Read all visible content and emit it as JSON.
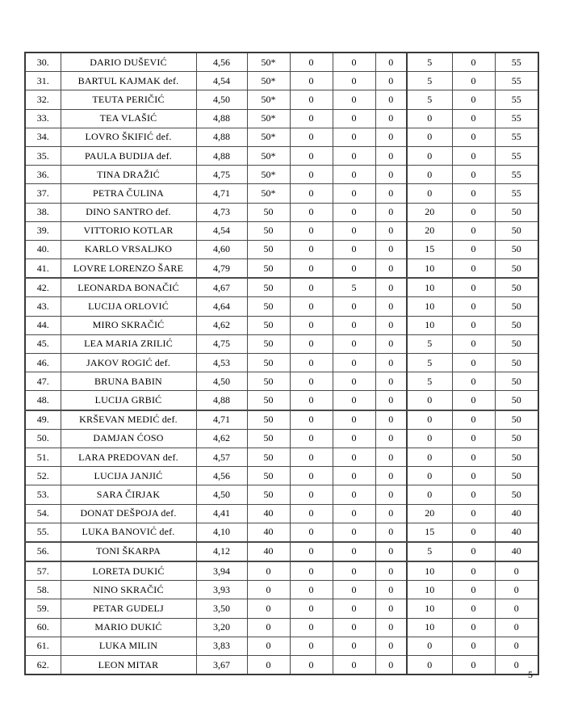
{
  "page": {
    "number": "5"
  },
  "table": {
    "thick_dividers_after_rows": [
      "41.",
      "48.",
      "55.",
      "56."
    ],
    "rows": [
      {
        "no": "30.",
        "name": "DARIO DUŠEVIĆ",
        "avg": "4,56",
        "vals": [
          "50*",
          "0",
          "0",
          "0",
          "5",
          "0",
          "55"
        ],
        "thick_after": false
      },
      {
        "no": "31.",
        "name": "BARTUL KAJMAK def.",
        "avg": "4,54",
        "vals": [
          "50*",
          "0",
          "0",
          "0",
          "5",
          "0",
          "55"
        ],
        "thick_after": false
      },
      {
        "no": "32.",
        "name": "TEUTA PERIČIĆ",
        "avg": "4,50",
        "vals": [
          "50*",
          "0",
          "0",
          "0",
          "5",
          "0",
          "55"
        ],
        "thick_after": false
      },
      {
        "no": "33.",
        "name": "TEA VLAŠIĆ",
        "avg": "4,88",
        "vals": [
          "50*",
          "0",
          "0",
          "0",
          "0",
          "0",
          "55"
        ],
        "thick_after": false
      },
      {
        "no": "34.",
        "name": "LOVRO ŠKIFIĆ def.",
        "avg": "4,88",
        "vals": [
          "50*",
          "0",
          "0",
          "0",
          "0",
          "0",
          "55"
        ],
        "thick_after": false
      },
      {
        "no": "35.",
        "name": "PAULA BUDIJA def.",
        "avg": "4,88",
        "vals": [
          "50*",
          "0",
          "0",
          "0",
          "0",
          "0",
          "55"
        ],
        "thick_after": false
      },
      {
        "no": "36.",
        "name": "TINA DRAŽIĆ",
        "avg": "4,75",
        "vals": [
          "50*",
          "0",
          "0",
          "0",
          "0",
          "0",
          "55"
        ],
        "thick_after": false
      },
      {
        "no": "37.",
        "name": "PETRA ČULINA",
        "avg": "4,71",
        "vals": [
          "50*",
          "0",
          "0",
          "0",
          "0",
          "0",
          "55"
        ],
        "thick_after": false
      },
      {
        "no": "38.",
        "name": "DINO SANTRO def.",
        "avg": "4,73",
        "vals": [
          "50",
          "0",
          "0",
          "0",
          "20",
          "0",
          "50"
        ],
        "thick_after": false
      },
      {
        "no": "39.",
        "name": "VITTORIO KOTLAR",
        "avg": "4,54",
        "vals": [
          "50",
          "0",
          "0",
          "0",
          "20",
          "0",
          "50"
        ],
        "thick_after": false
      },
      {
        "no": "40.",
        "name": "KARLO VRSALJKO",
        "avg": "4,60",
        "vals": [
          "50",
          "0",
          "0",
          "0",
          "15",
          "0",
          "50"
        ],
        "thick_after": false
      },
      {
        "no": "41.",
        "name": "LOVRE LORENZO ŠARE",
        "avg": "4,79",
        "vals": [
          "50",
          "0",
          "0",
          "0",
          "10",
          "0",
          "50"
        ],
        "thick_after": true
      },
      {
        "no": "42.",
        "name": "LEONARDA BONAČIĆ",
        "avg": "4,67",
        "vals": [
          "50",
          "0",
          "5",
          "0",
          "10",
          "0",
          "50"
        ],
        "thick_after": false
      },
      {
        "no": "43.",
        "name": "LUCIJA ORLOVIĆ",
        "avg": "4,64",
        "vals": [
          "50",
          "0",
          "0",
          "0",
          "10",
          "0",
          "50"
        ],
        "thick_after": false
      },
      {
        "no": "44.",
        "name": "MIRO SKRAČIĆ",
        "avg": "4,62",
        "vals": [
          "50",
          "0",
          "0",
          "0",
          "10",
          "0",
          "50"
        ],
        "thick_after": false
      },
      {
        "no": "45.",
        "name": "LEA MARIA ZRILIĆ",
        "avg": "4,75",
        "vals": [
          "50",
          "0",
          "0",
          "0",
          "5",
          "0",
          "50"
        ],
        "thick_after": false
      },
      {
        "no": "46.",
        "name": "JAKOV ROGIĆ def.",
        "avg": "4,53",
        "vals": [
          "50",
          "0",
          "0",
          "0",
          "5",
          "0",
          "50"
        ],
        "thick_after": false
      },
      {
        "no": "47.",
        "name": "BRUNA BABIN",
        "avg": "4,50",
        "vals": [
          "50",
          "0",
          "0",
          "0",
          "5",
          "0",
          "50"
        ],
        "thick_after": false
      },
      {
        "no": "48.",
        "name": "LUCIJA GRBIĆ",
        "avg": "4,88",
        "vals": [
          "50",
          "0",
          "0",
          "0",
          "0",
          "0",
          "50"
        ],
        "thick_after": true
      },
      {
        "no": "49.",
        "name": "KRŠEVAN MEDIĆ def.",
        "avg": "4,71",
        "vals": [
          "50",
          "0",
          "0",
          "0",
          "0",
          "0",
          "50"
        ],
        "thick_after": false
      },
      {
        "no": "50.",
        "name": "DAMJAN ĆOSO",
        "avg": "4,62",
        "vals": [
          "50",
          "0",
          "0",
          "0",
          "0",
          "0",
          "50"
        ],
        "thick_after": false
      },
      {
        "no": "51.",
        "name": "LARA PREDOVAN def.",
        "avg": "4,57",
        "vals": [
          "50",
          "0",
          "0",
          "0",
          "0",
          "0",
          "50"
        ],
        "thick_after": false
      },
      {
        "no": "52.",
        "name": "LUCIJA JANJIĆ",
        "avg": "4,56",
        "vals": [
          "50",
          "0",
          "0",
          "0",
          "0",
          "0",
          "50"
        ],
        "thick_after": false
      },
      {
        "no": "53.",
        "name": "SARA ČIRJAK",
        "avg": "4,50",
        "vals": [
          "50",
          "0",
          "0",
          "0",
          "0",
          "0",
          "50"
        ],
        "thick_after": false
      },
      {
        "no": "54.",
        "name": "DONAT DEŠPOJA def.",
        "avg": "4,41",
        "vals": [
          "40",
          "0",
          "0",
          "0",
          "20",
          "0",
          "40"
        ],
        "thick_after": false
      },
      {
        "no": "55.",
        "name": "LUKA BANOVIĆ def.",
        "avg": "4,10",
        "vals": [
          "40",
          "0",
          "0",
          "0",
          "15",
          "0",
          "40"
        ],
        "thick_after": true
      },
      {
        "no": "56.",
        "name": "TONI ŠKARPA",
        "avg": "4,12",
        "vals": [
          "40",
          "0",
          "0",
          "0",
          "5",
          "0",
          "40"
        ],
        "thick_after": true
      },
      {
        "no": "57.",
        "name": "LORETA DUKIĆ",
        "avg": "3,94",
        "vals": [
          "0",
          "0",
          "0",
          "0",
          "10",
          "0",
          "0"
        ],
        "thick_after": false
      },
      {
        "no": "58.",
        "name": "NINO SKRAČIĆ",
        "avg": "3,93",
        "vals": [
          "0",
          "0",
          "0",
          "0",
          "10",
          "0",
          "0"
        ],
        "thick_after": false
      },
      {
        "no": "59.",
        "name": "PETAR GUDELJ",
        "avg": "3,50",
        "vals": [
          "0",
          "0",
          "0",
          "0",
          "10",
          "0",
          "0"
        ],
        "thick_after": false
      },
      {
        "no": "60.",
        "name": "MARIO DUKIĆ",
        "avg": "3,20",
        "vals": [
          "0",
          "0",
          "0",
          "0",
          "10",
          "0",
          "0"
        ],
        "thick_after": false
      },
      {
        "no": "61.",
        "name": "LUKA MILIN",
        "avg": "3,83",
        "vals": [
          "0",
          "0",
          "0",
          "0",
          "0",
          "0",
          "0"
        ],
        "thick_after": false
      },
      {
        "no": "62.",
        "name": "LEON MITAR",
        "avg": "3,67",
        "vals": [
          "0",
          "0",
          "0",
          "0",
          "0",
          "0",
          "0"
        ],
        "thick_after": false
      }
    ]
  }
}
